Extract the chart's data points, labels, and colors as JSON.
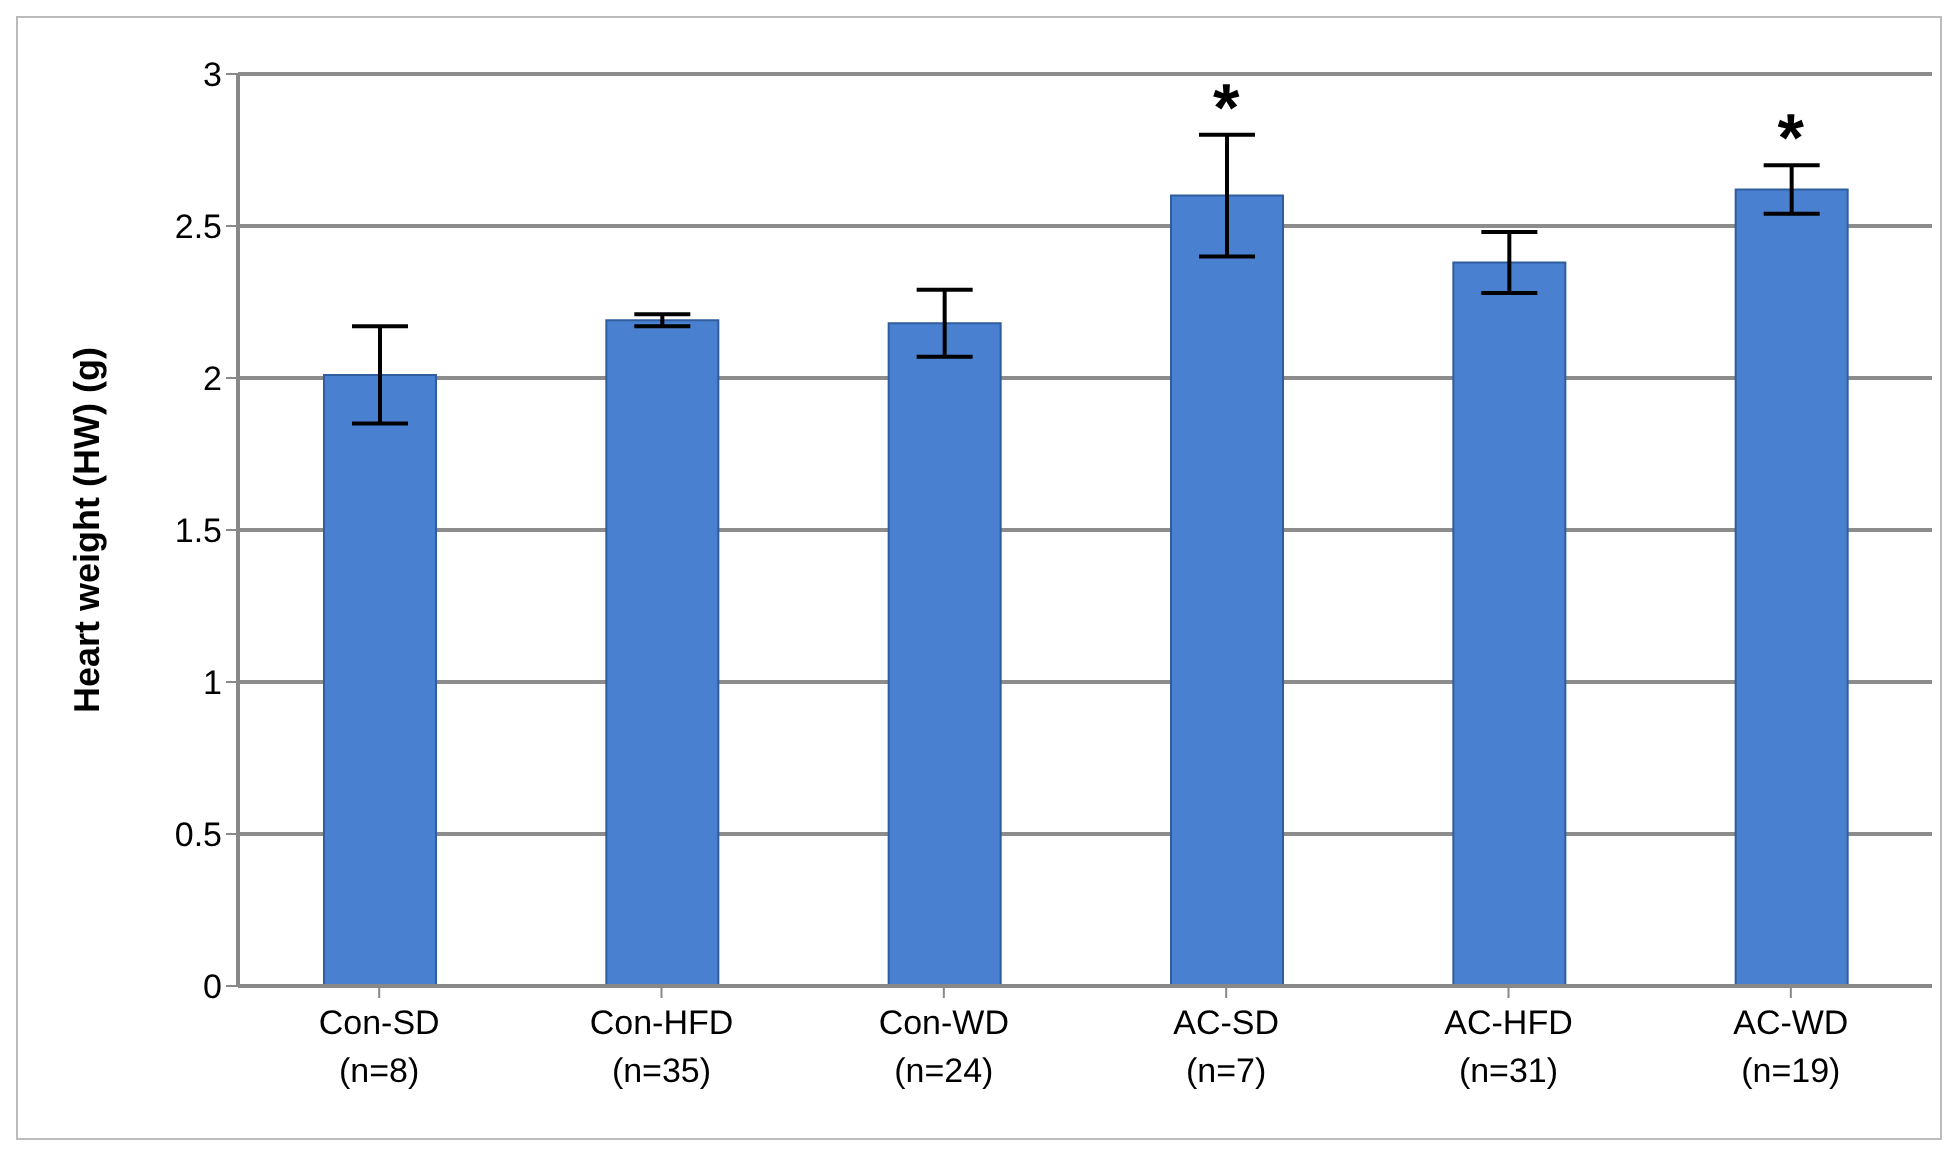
{
  "chart_data": {
    "type": "bar",
    "ylabel": "Heart weight (HW) (g)",
    "categories": [
      "Con-SD\n(n=8)",
      "Con-HFD\n(n=35)",
      "Con-WD\n(n=24)",
      "AC-SD\n(n=7)",
      "AC-HFD\n(n=31)",
      "AC-WD\n(n=19)"
    ],
    "values": [
      2.01,
      2.19,
      2.18,
      2.6,
      2.38,
      2.62
    ],
    "errors": [
      0.16,
      0.02,
      0.11,
      0.2,
      0.1,
      0.08
    ],
    "color": "#4a80d0",
    "ylim": [
      0,
      3
    ],
    "yticks": [
      0,
      0.5,
      1,
      1.5,
      2,
      2.5,
      3
    ],
    "grid": "y",
    "annotations": [
      {
        "text": "*",
        "x": "AC-SD\n(n=7)",
        "y": 2.8
      },
      {
        "text": "*",
        "x": "AC-WD\n(n=19)",
        "y": 2.7
      }
    ]
  }
}
